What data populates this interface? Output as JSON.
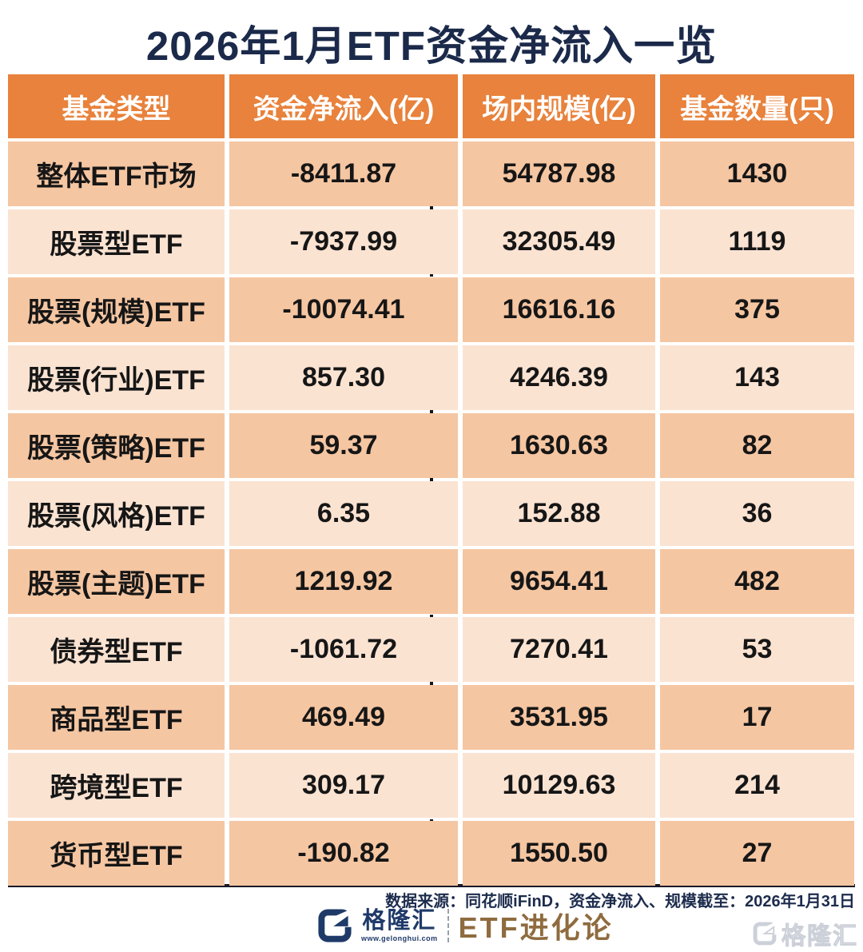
{
  "title": "2026年1月ETF资金净流入一览",
  "table": {
    "columns": [
      "基金类型",
      "资金净流入(亿)",
      "场内规模(亿)",
      "基金数量(只)"
    ],
    "rows": [
      {
        "label": "整体ETF市场",
        "flow": "-8411.87",
        "flow_val": -8411.87,
        "scale": "54787.98",
        "count": "1430"
      },
      {
        "label": "股票型ETF",
        "flow": "-7937.99",
        "flow_val": -7937.99,
        "scale": "32305.49",
        "count": "1119"
      },
      {
        "label": "股票(规模)ETF",
        "flow": "-10074.41",
        "flow_val": -10074.41,
        "scale": "16616.16",
        "count": "375"
      },
      {
        "label": "股票(行业)ETF",
        "flow": "857.30",
        "flow_val": 857.3,
        "scale": "4246.39",
        "count": "143"
      },
      {
        "label": "股票(策略)ETF",
        "flow": "59.37",
        "flow_val": 59.37,
        "scale": "1630.63",
        "count": "82"
      },
      {
        "label": "股票(风格)ETF",
        "flow": "6.35",
        "flow_val": 6.35,
        "scale": "152.88",
        "count": "36"
      },
      {
        "label": "股票(主题)ETF",
        "flow": "1219.92",
        "flow_val": 1219.92,
        "scale": "9654.41",
        "count": "482"
      },
      {
        "label": "债券型ETF",
        "flow": "-1061.72",
        "flow_val": -1061.72,
        "scale": "7270.41",
        "count": "53"
      },
      {
        "label": "商品型ETF",
        "flow": "469.49",
        "flow_val": 469.49,
        "scale": "3531.95",
        "count": "17"
      },
      {
        "label": "跨境型ETF",
        "flow": "309.17",
        "flow_val": 309.17,
        "scale": "10129.63",
        "count": "214"
      },
      {
        "label": "货币型ETF",
        "flow": "-190.82",
        "flow_val": -190.82,
        "scale": "1550.50",
        "count": "27"
      }
    ]
  },
  "chart_data": {
    "type": "table",
    "title": "2026年1月ETF资金净流入一览",
    "columns": [
      "基金类型",
      "资金净流入(亿)",
      "场内规模(亿)",
      "基金数量(只)"
    ],
    "rows": [
      [
        "整体ETF市场",
        -8411.87,
        54787.98,
        1430
      ],
      [
        "股票型ETF",
        -7937.99,
        32305.49,
        1119
      ],
      [
        "股票(规模)ETF",
        -10074.41,
        16616.16,
        375
      ],
      [
        "股票(行业)ETF",
        857.3,
        4246.39,
        143
      ],
      [
        "股票(策略)ETF",
        59.37,
        1630.63,
        82
      ],
      [
        "股票(风格)ETF",
        6.35,
        152.88,
        36
      ],
      [
        "股票(主题)ETF",
        1219.92,
        9654.41,
        482
      ],
      [
        "债券型ETF",
        -1061.72,
        7270.41,
        53
      ],
      [
        "商品型ETF",
        469.49,
        3531.95,
        17
      ],
      [
        "跨境型ETF",
        309.17,
        10129.63,
        214
      ],
      [
        "货币型ETF",
        -190.82,
        1550.5,
        27
      ]
    ],
    "bar_overlay": {
      "column": "资金净流入(亿)",
      "zero_axis": "vertical dashed line inside 资金净流入 column",
      "negative_bars": "green, extend left of zero line",
      "positive_bars": "red, extend right of zero line",
      "bar_scale_note": "bar width proportional to |value|; -10074.41 is the longest bar"
    }
  },
  "footer": {
    "source": "数据来源：同花顺iFinD，资金净流入、规模截至：2026年1月31日",
    "brand": "格隆汇",
    "brand_url": "www.gelonghui.com",
    "series": "ETF进化论",
    "watermark": "格隆汇"
  },
  "colors": {
    "header_bg": "#E8823C",
    "row_dark": "#F5C6A2",
    "row_light": "#FBE3D2",
    "title_navy": "#1B2A4A",
    "green_bar_start": "#F1F9E7",
    "green_bar_end": "#8CC551",
    "red_bar_start": "#F2262D",
    "red_bar_end": "#F99CA0",
    "zero_line": "#151515",
    "brand_navy": "#1F3A68",
    "series_bronze": "#8F6B3F",
    "watermark_gray": "#CBCFD8"
  }
}
